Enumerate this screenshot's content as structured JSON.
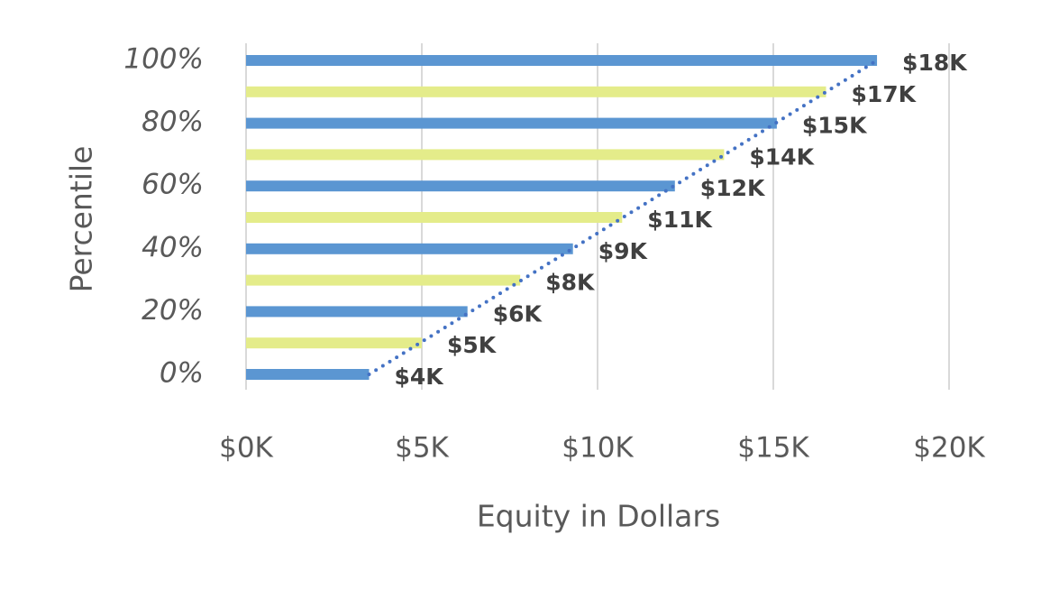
{
  "chart_data": {
    "type": "hbar",
    "x_label": "Equity in Dollars",
    "y_label": "Percentile",
    "categories": [
      "0%",
      null,
      "20%",
      null,
      "40%",
      null,
      "60%",
      null,
      "80%",
      null,
      "100%"
    ],
    "values": [
      3500,
      5000,
      6300,
      7800,
      9300,
      10700,
      12200,
      13600,
      15100,
      16500,
      17950
    ],
    "value_labels": [
      "$4K",
      "$5K",
      "$6K",
      "$8K",
      "$9K",
      "$11K",
      "$12K",
      "$14K",
      "$15K",
      "$17K",
      "$18K"
    ],
    "colors": [
      "#5b96d2",
      "#e4ec8a",
      "#5b96d2",
      "#e4ec8a",
      "#5b96d2",
      "#e4ec8a",
      "#5b96d2",
      "#e4ec8a",
      "#5b96d2",
      "#e4ec8a",
      "#5b96d2"
    ],
    "trendline_color": "#4472c4",
    "xlim": [
      0,
      20000
    ],
    "xticks": [
      {
        "value": 0,
        "label": "$0K"
      },
      {
        "value": 5000,
        "label": "$5K"
      },
      {
        "value": 10000,
        "label": "$10K"
      },
      {
        "value": 15000,
        "label": "$15K"
      },
      {
        "value": 20000,
        "label": "$20K"
      }
    ],
    "grid": true
  }
}
